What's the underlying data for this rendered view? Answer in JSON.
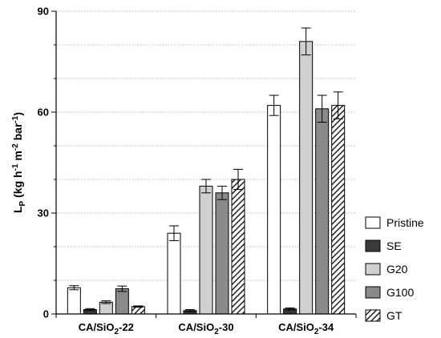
{
  "chart_data": {
    "type": "bar",
    "ylabel": "L_P (kg h^-1 m^-2 bar^-1)",
    "ylim": [
      0,
      90
    ],
    "yticks": [
      0,
      30,
      60,
      90
    ],
    "grid": true,
    "legend_position": "bottom-right",
    "categories": [
      {
        "base": "CA/SiO",
        "sub": "2",
        "rest": "-22"
      },
      {
        "base": "CA/SiO",
        "sub": "2",
        "rest": "-30"
      },
      {
        "base": "CA/SiO",
        "sub": "2",
        "rest": "-34"
      }
    ],
    "series": [
      {
        "name": "Pristine",
        "fill": "#ffffff",
        "pattern": "none",
        "values": [
          7.8,
          24,
          62
        ],
        "errors": [
          0.6,
          2.2,
          3
        ]
      },
      {
        "name": "SE",
        "fill": "#3a3a3a",
        "pattern": "none",
        "values": [
          1.3,
          1.0,
          1.5
        ],
        "errors": [
          0.3,
          0.3,
          0.3
        ]
      },
      {
        "name": "G20",
        "fill": "#d0d0d0",
        "pattern": "none",
        "values": [
          3.5,
          38,
          81
        ],
        "errors": [
          0.4,
          2,
          4
        ]
      },
      {
        "name": "G100",
        "fill": "#8a8a8a",
        "pattern": "none",
        "values": [
          7.5,
          36,
          61
        ],
        "errors": [
          0.8,
          2,
          4
        ]
      },
      {
        "name": "GT",
        "fill": "#ffffff",
        "pattern": "hatch",
        "values": [
          2.2,
          40,
          62
        ],
        "errors": [
          0.2,
          3,
          4
        ]
      }
    ]
  }
}
